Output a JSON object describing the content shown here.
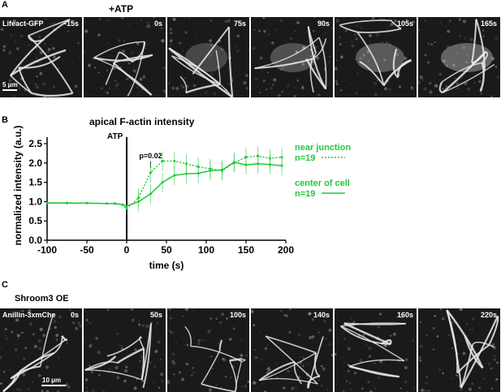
{
  "panels": {
    "a": {
      "letter": "A",
      "treatment": "+ATP",
      "marker": "Lifeact-GFP",
      "frames": [
        "-15s",
        "0s",
        "75s",
        "90s",
        "105s",
        "165s"
      ],
      "scale": "5 μm"
    },
    "b": {
      "letter": "B"
    },
    "c": {
      "letter": "C",
      "condition": "Shroom3 OE",
      "marker": "Anillin-3xmChe",
      "frames": [
        "0s",
        "50s",
        "100s",
        "140s",
        "160s",
        "220s"
      ],
      "scale": "10 μm"
    }
  },
  "colors": {
    "green": "#22c93a",
    "black": "#000000"
  },
  "chart_data": {
    "type": "line",
    "title": "apical F-actin intensity",
    "xlabel": "time (s)",
    "ylabel": "normalized intensity (a.u.)",
    "xlim": [
      -100,
      200
    ],
    "ylim": [
      0,
      2.5
    ],
    "xticks": [
      "-100",
      "-50",
      "0",
      "50",
      "100",
      "150",
      "200"
    ],
    "yticks": [
      "0.0",
      "0.5",
      "1.0",
      "1.5",
      "2.0",
      "2.5"
    ],
    "event_label": "ATP",
    "event_x": 0,
    "annotation": "p=0.02",
    "annotation_x": 30,
    "series": [
      {
        "name": "near junction",
        "n_label": "n=19",
        "style": "dotted",
        "x": [
          -100,
          -75,
          -50,
          -25,
          -15,
          -5,
          0,
          15,
          30,
          45,
          60,
          75,
          90,
          105,
          120,
          135,
          150,
          165,
          180,
          195
        ],
        "y": [
          0.97,
          0.97,
          0.96,
          0.95,
          0.95,
          0.92,
          0.82,
          1.1,
          1.75,
          2.05,
          2.05,
          1.98,
          1.9,
          1.85,
          1.8,
          2.0,
          2.15,
          2.18,
          2.12,
          2.15
        ]
      },
      {
        "name": "center of cell",
        "n_label": "n=19",
        "style": "solid",
        "x": [
          -100,
          -75,
          -50,
          -25,
          -15,
          -5,
          0,
          15,
          30,
          45,
          60,
          75,
          90,
          105,
          120,
          135,
          150,
          165,
          180,
          195
        ],
        "y": [
          0.96,
          0.96,
          0.96,
          0.95,
          0.95,
          0.92,
          0.88,
          1.0,
          1.2,
          1.5,
          1.68,
          1.72,
          1.73,
          1.8,
          1.82,
          2.02,
          1.95,
          1.98,
          1.96,
          1.93
        ]
      }
    ]
  }
}
